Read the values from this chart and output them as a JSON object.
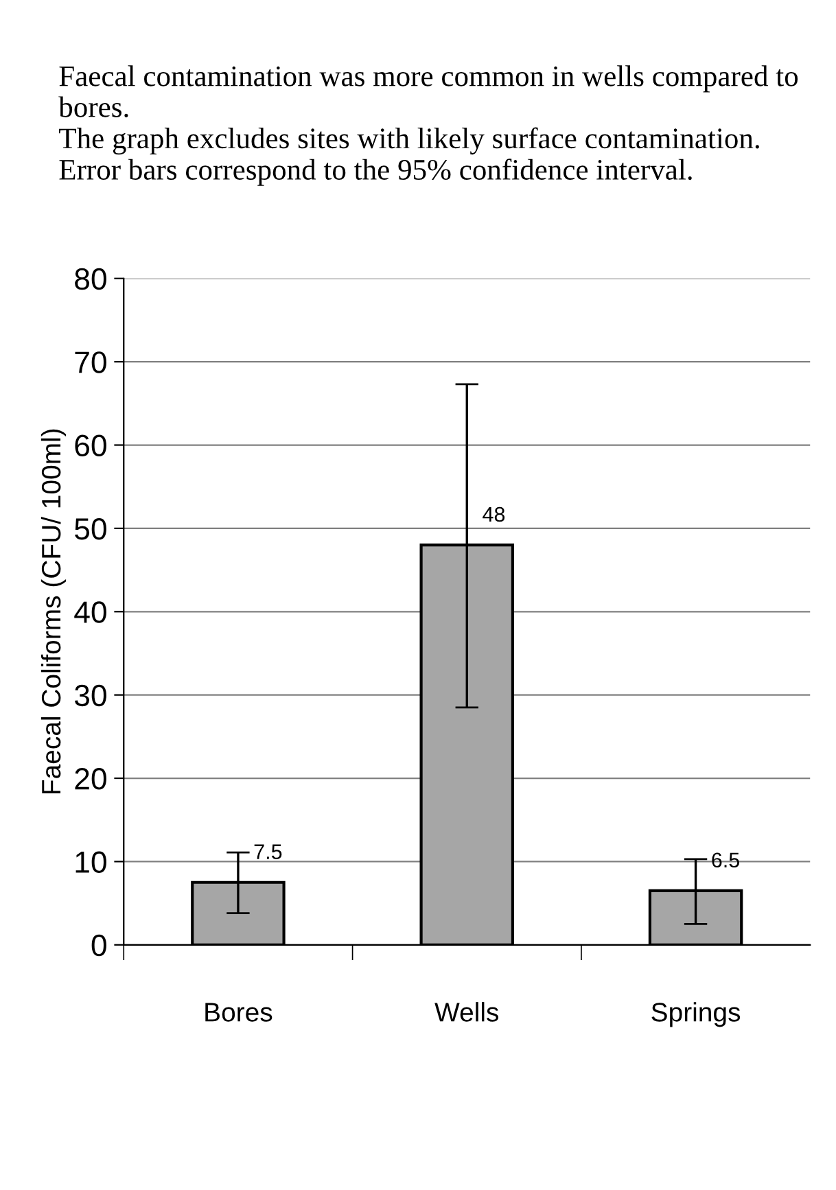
{
  "chart_data": {
    "type": "bar",
    "subtitle": "Faecal contamination was more common in wells compared to bores.",
    "annotations": [
      "The graph excludes sites with likely surface contamination.  Error bars correspond to the 95% confidence interval."
    ],
    "ylabel": "Faecal Coliforms (CFU/ 100ml)",
    "categories": [
      "Bores",
      "Wells",
      "Springs"
    ],
    "values": [
      7.5,
      48,
      6.5
    ],
    "errors": [
      [
        3.8,
        11.1
      ],
      [
        28.5,
        67.3
      ],
      [
        2.5,
        10.3
      ]
    ],
    "color": "#a6a6a6",
    "data_labels": true,
    "ylim": [
      0,
      80
    ],
    "yticks": [
      0,
      10,
      20,
      30,
      40,
      50,
      60,
      70,
      80
    ],
    "grid": "y"
  }
}
